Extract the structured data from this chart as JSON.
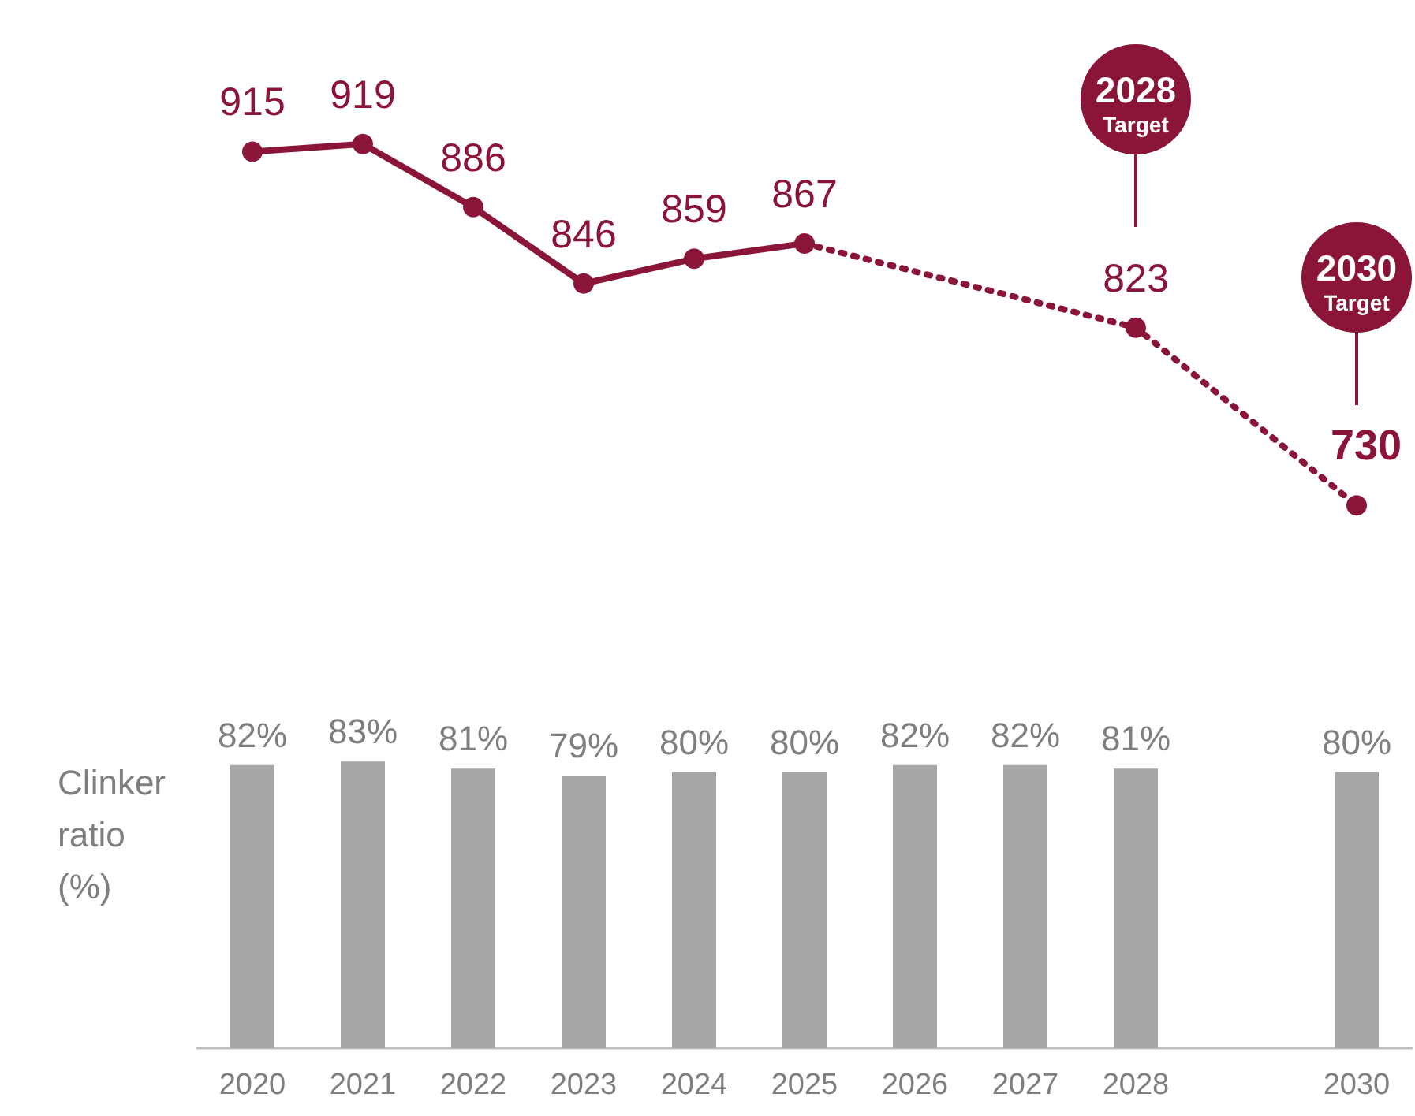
{
  "chart_data": [
    {
      "type": "line",
      "categories": [
        "2020",
        "2021",
        "2022",
        "2023",
        "2024",
        "2025",
        "2026",
        "2027",
        "2028",
        null,
        "2030"
      ],
      "series": [
        {
          "color": "#8b1538",
          "line_style": "solid",
          "values": [
            915,
            919,
            886,
            846,
            859,
            867,
            null,
            null,
            null,
            null,
            null
          ],
          "value_labels": [
            "915",
            "919",
            "886",
            "846",
            "859",
            "867",
            null,
            null,
            null,
            null,
            null
          ]
        },
        {
          "color": "#8b1538",
          "line_style": "dotted",
          "values": [
            null,
            null,
            null,
            null,
            null,
            867,
            null,
            null,
            823,
            null,
            730
          ],
          "value_labels": [
            null,
            null,
            null,
            null,
            null,
            null,
            null,
            null,
            "823",
            null,
            "730"
          ]
        }
      ],
      "marker": "circle",
      "grid": false,
      "tick_labels": false,
      "annotations": [
        "2028 Target",
        "2030 Target"
      ]
    },
    {
      "type": "bar",
      "categories": [
        "2020",
        "2021",
        "2022",
        "2023",
        "2024",
        "2025",
        "2026",
        "2027",
        "2028",
        null,
        "2030"
      ],
      "ylabel": "Clinker ratio (%)",
      "series": [
        {
          "color": "#a6a6a6",
          "values": [
            82,
            83,
            81,
            79,
            80,
            80,
            82,
            82,
            81,
            null,
            80
          ],
          "value_labels": [
            "82%",
            "83%",
            "81%",
            "79%",
            "80%",
            "80%",
            "82%",
            "82%",
            "81%",
            null,
            "80%"
          ]
        }
      ],
      "grid": false,
      "tick_labels": "x"
    }
  ]
}
